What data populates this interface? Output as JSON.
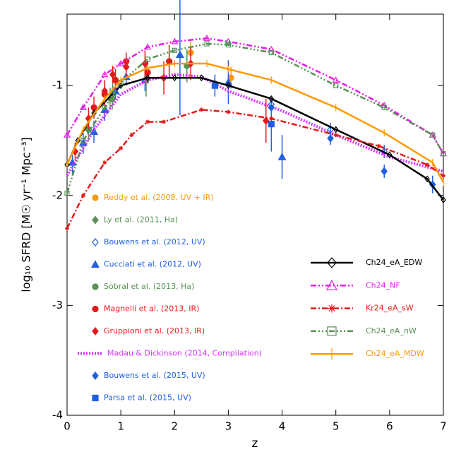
{
  "chart_data": {
    "type": "line",
    "xlabel": "z",
    "ylabel": "log₁₀ SFRD [M☉ yr⁻¹ Mpc⁻³]",
    "xlim": [
      0,
      7
    ],
    "ylim": [
      -4,
      -0.35
    ],
    "xticks": [
      0,
      1,
      2,
      3,
      4,
      5,
      6,
      7
    ],
    "yticks": [
      -4,
      -3,
      -2,
      -1
    ],
    "series": [
      {
        "name": "Reddy et al. (2008, UV + IR)",
        "type": "scatter",
        "legend": "left",
        "color": "#f39c12",
        "marker": "circle",
        "x": [
          1.9,
          2.3,
          3.05
        ],
        "values": [
          -0.78,
          -0.7,
          -0.93
        ],
        "errors": [
          0.1,
          0.1,
          0.1
        ]
      },
      {
        "name": "Ly et al. (2011, Ha)",
        "type": "scatter",
        "legend": "left",
        "color": "#5a8f55",
        "marker": "diamond",
        "x": [
          0.8,
          0.85
        ],
        "values": [
          -1.12,
          -1.08
        ],
        "errors": [
          0.1,
          0.1
        ]
      },
      {
        "name": "Bouwens et al. (2012, UV)",
        "type": "scatter",
        "legend": "left",
        "color": "#2060e0",
        "marker": "diamond-open",
        "x": [
          3.8,
          4.9,
          5.9
        ],
        "values": [
          -1.17,
          -1.4,
          -1.6
        ],
        "errors": [
          0.05,
          0.06,
          0.06
        ]
      },
      {
        "name": "Cucciati et al. (2012, UV)",
        "type": "scatter",
        "legend": "left",
        "color": "#2060e0",
        "marker": "triangle",
        "x": [
          0.1,
          0.3,
          0.5,
          0.7,
          0.9,
          1.1,
          1.45,
          2.1,
          3.0,
          4.0
        ],
        "values": [
          -1.7,
          -1.52,
          -1.42,
          -1.22,
          -1.05,
          -0.92,
          -0.95,
          -0.72,
          -0.97,
          -1.65
        ],
        "errors": [
          0.1,
          0.1,
          0.1,
          0.1,
          0.08,
          0.08,
          0.1,
          0.55,
          0.2,
          0.2
        ]
      },
      {
        "name": "Sobral et al. (2013, Ha)",
        "type": "scatter",
        "legend": "left",
        "color": "#5a8f55",
        "marker": "circle",
        "x": [
          0.4,
          0.84,
          1.47,
          2.23
        ],
        "values": [
          -1.4,
          -1.12,
          -0.95,
          -0.82
        ],
        "errors": [
          0.1,
          0.1,
          0.15,
          0.15
        ]
      },
      {
        "name": "Magnelli et al. (2013, IR)",
        "type": "scatter",
        "legend": "left",
        "color": "#e61919",
        "marker": "circle",
        "x": [
          0.5,
          0.7,
          0.9,
          1.1,
          1.5,
          1.9
        ],
        "values": [
          -1.2,
          -1.08,
          -0.95,
          -0.78,
          -0.88,
          -0.78
        ],
        "errors": [
          0.1,
          0.12,
          0.1,
          0.08,
          0.1,
          0.15
        ]
      },
      {
        "name": "Gruppioni et al. (2013, IR)",
        "type": "scatter",
        "legend": "left",
        "color": "#e61919",
        "marker": "diamond",
        "x": [
          0.15,
          0.4,
          0.7,
          0.85,
          1.1,
          1.45,
          1.8,
          2.3,
          3.7
        ],
        "values": [
          -1.6,
          -1.3,
          -1.05,
          -0.9,
          -0.83,
          -0.8,
          -0.93,
          -0.8,
          -1.32
        ],
        "errors": [
          0.08,
          0.1,
          0.1,
          0.08,
          0.1,
          0.12,
          0.15,
          0.15,
          0.2
        ]
      },
      {
        "name": "Madau & Dickinson (2014, Compilation)",
        "type": "line",
        "legend": "left",
        "color": "#d633ff",
        "style": "dotted",
        "x": [
          0,
          0.5,
          1,
          1.5,
          2,
          2.5,
          3,
          4,
          5,
          6,
          7
        ],
        "values": [
          -1.82,
          -1.4,
          -1.08,
          -0.95,
          -0.9,
          -0.92,
          -1.05,
          -1.23,
          -1.45,
          -1.65,
          -1.78
        ]
      },
      {
        "name": "Bouwens et al. (2015, UV)",
        "type": "scatter",
        "legend": "left",
        "color": "#2060e0",
        "marker": "diamond",
        "x": [
          3.8,
          4.9,
          5.9,
          6.8
        ],
        "values": [
          -1.2,
          -1.48,
          -1.78,
          -1.9
        ],
        "errors": [
          0.05,
          0.06,
          0.06,
          0.08
        ]
      },
      {
        "name": "Parsa et al. (2015, UV)",
        "type": "scatter",
        "legend": "left",
        "color": "#2060e0",
        "marker": "square",
        "x": [
          2.75,
          3.8
        ],
        "values": [
          -1.0,
          -1.35
        ],
        "errors": [
          0.1,
          0.25
        ]
      },
      {
        "name": "Ch24_eA_EDW",
        "type": "line",
        "legend": "right",
        "color": "#000000",
        "style": "solid",
        "marker": "diamond-open",
        "x": [
          0,
          0.2,
          0.5,
          1,
          1.5,
          2,
          2.5,
          3,
          3.8,
          5,
          6,
          6.7,
          7
        ],
        "values": [
          -1.72,
          -1.5,
          -1.25,
          -1.0,
          -0.93,
          -0.93,
          -0.93,
          -1.0,
          -1.12,
          -1.4,
          -1.63,
          -1.85,
          -2.04
        ]
      },
      {
        "name": "Ch24_NF",
        "type": "line",
        "legend": "right",
        "color": "#e619e6",
        "style": "dashdotdot",
        "marker": "triangle-open",
        "x": [
          0,
          0.3,
          0.7,
          1,
          1.5,
          2,
          2.6,
          3,
          3.8,
          5,
          5.9,
          6.8,
          7
        ],
        "values": [
          -1.45,
          -1.2,
          -0.9,
          -0.8,
          -0.65,
          -0.6,
          -0.57,
          -0.6,
          -0.67,
          -0.95,
          -1.18,
          -1.45,
          -1.62
        ]
      },
      {
        "name": "Kr24_eA_sW",
        "type": "line",
        "legend": "right",
        "color": "#e61919",
        "style": "dashdot",
        "marker": "asterisk",
        "x": [
          0,
          0.3,
          0.7,
          1.0,
          1.2,
          1.5,
          1.8,
          2.5,
          3,
          3.8,
          5,
          5.8,
          6.7,
          7
        ],
        "values": [
          -2.3,
          -2.0,
          -1.7,
          -1.57,
          -1.45,
          -1.33,
          -1.33,
          -1.22,
          -1.24,
          -1.3,
          -1.45,
          -1.55,
          -1.72,
          -1.82
        ]
      },
      {
        "name": "Ch24_eA_nW",
        "type": "line",
        "legend": "right",
        "color": "#5a8f55",
        "style": "dashdotdotdot",
        "marker": "square-open",
        "x": [
          0,
          0.3,
          0.7,
          1,
          1.5,
          2,
          2.6,
          3,
          3.8,
          5,
          5.9,
          6.8,
          7
        ],
        "values": [
          -1.98,
          -1.5,
          -1.2,
          -0.97,
          -0.76,
          -0.68,
          -0.62,
          -0.63,
          -0.7,
          -1.0,
          -1.2,
          -1.45,
          -1.62
        ]
      },
      {
        "name": "Ch24_eA_MDW",
        "type": "line",
        "legend": "right",
        "color": "#ff9900",
        "style": "solid",
        "marker": "plus",
        "x": [
          0,
          0.3,
          0.7,
          1,
          1.5,
          2,
          2.6,
          3,
          3.8,
          5,
          5.9,
          6.8,
          7
        ],
        "values": [
          -1.72,
          -1.4,
          -1.12,
          -0.95,
          -0.84,
          -0.8,
          -0.8,
          -0.85,
          -0.95,
          -1.2,
          -1.43,
          -1.7,
          -1.88
        ]
      }
    ]
  }
}
